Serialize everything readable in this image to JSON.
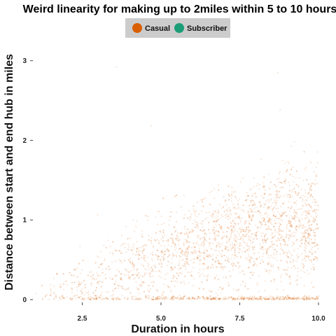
{
  "chart_data": {
    "type": "scatter",
    "title": "Weird linearity for making up to 2miles within 5 to 10 hours",
    "xlabel": "Duration in hours",
    "ylabel": "Distance between start and end hub in miles",
    "xlim": [
      1.0,
      10.0
    ],
    "ylim": [
      0,
      3.05
    ],
    "x_ticks": [
      2.5,
      5.0,
      7.5,
      10.0
    ],
    "x_tick_labels": [
      "2.5",
      "5.0",
      "7.5",
      "10.0"
    ],
    "y_ticks": [
      0,
      1,
      2,
      3
    ],
    "y_tick_labels": [
      "0",
      "1",
      "2",
      "3"
    ],
    "grid": false,
    "legend_position": "top-center",
    "legend": [
      {
        "name": "Casual",
        "color": "#d95f02"
      },
      {
        "name": "Subscriber",
        "color": "#1b9e77"
      }
    ],
    "series": [
      {
        "name": "Casual",
        "color": "#d95f02",
        "opacity": 0.15,
        "trend_x": [
          1.0,
          2.5,
          5.0,
          7.5,
          10.0
        ],
        "trend_y_center": [
          0.05,
          0.2,
          0.55,
          0.8,
          1.0
        ],
        "trend_y_upper": [
          0.2,
          0.6,
          1.15,
          1.5,
          1.8
        ]
      }
    ]
  }
}
